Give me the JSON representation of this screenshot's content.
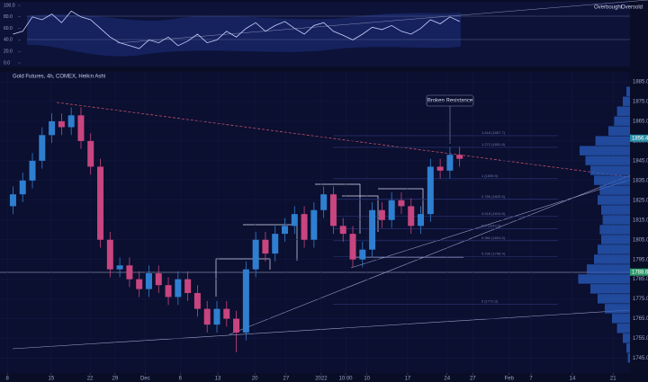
{
  "chart_data": {
    "type": "candlestick",
    "title": "Gold Futures, 4h, COMEX, Heikin Ashi",
    "annotation": "Broken Resistance",
    "x": [
      -1.5,
      0.05,
      1.6,
      3.15,
      4.7,
      6.25,
      7.8,
      9.35,
      10.9,
      12.45,
      14,
      15.55,
      17.1,
      18.65,
      20.2,
      21.75,
      23.3,
      24.85,
      26.4,
      27.95,
      29.5,
      31.05,
      32.6,
      34.15,
      35.7,
      37.25,
      38.8,
      40.35,
      41.9,
      43.45,
      45,
      46.55,
      48.1,
      49.65,
      51.2,
      52.75,
      54.3,
      55.85,
      57.4,
      58.95,
      60.5,
      62.05,
      63.6,
      65.15,
      66.7,
      68.25,
      69.8
    ],
    "open": [
      1822,
      1828,
      1835,
      1845,
      1858,
      1865,
      1862,
      1868,
      1855,
      1842,
      1805,
      1790,
      1792,
      1785,
      1780,
      1788,
      1782,
      1776,
      1785,
      1778,
      1770,
      1762,
      1770,
      1765,
      1758,
      1790,
      1805,
      1798,
      1808,
      1812,
      1818,
      1805,
      1820,
      1828,
      1812,
      1808,
      1795,
      1800,
      1820,
      1815,
      1825,
      1822,
      1812,
      1818,
      1842,
      1840,
      1848
    ],
    "high": [
      1832,
      1839,
      1849,
      1862,
      1869,
      1869,
      1872,
      1872,
      1859,
      1846,
      1809,
      1796,
      1796,
      1789,
      1792,
      1792,
      1786,
      1789,
      1789,
      1782,
      1774,
      1774,
      1774,
      1769,
      1794,
      1809,
      1809,
      1812,
      1816,
      1822,
      1822,
      1824,
      1832,
      1832,
      1816,
      1812,
      1804,
      1824,
      1824,
      1829,
      1829,
      1826,
      1822,
      1846,
      1846,
      1852,
      1852
    ],
    "low": [
      1818,
      1824,
      1831,
      1841,
      1854,
      1858,
      1858,
      1851,
      1838,
      1801,
      1786,
      1786,
      1781,
      1776,
      1776,
      1778,
      1772,
      1772,
      1774,
      1766,
      1758,
      1758,
      1761,
      1748,
      1754,
      1786,
      1794,
      1794,
      1804,
      1808,
      1801,
      1801,
      1816,
      1808,
      1804,
      1791,
      1791,
      1796,
      1811,
      1811,
      1818,
      1808,
      1808,
      1814,
      1836,
      1836,
      1842
    ],
    "close": [
      1828,
      1835,
      1845,
      1858,
      1865,
      1862,
      1868,
      1855,
      1842,
      1805,
      1790,
      1792,
      1785,
      1780,
      1788,
      1782,
      1776,
      1785,
      1778,
      1770,
      1762,
      1770,
      1765,
      1758,
      1790,
      1805,
      1798,
      1808,
      1812,
      1818,
      1805,
      1820,
      1828,
      1812,
      1808,
      1795,
      1800,
      1820,
      1815,
      1825,
      1822,
      1812,
      1818,
      1842,
      1840,
      1848,
      1846
    ],
    "up_color": "#2f7fd0",
    "down_color": "#c8457f",
    "xlim": [
      -3,
      97
    ],
    "xticks": [
      {
        "value": -2.4,
        "label": "8"
      },
      {
        "value": 4.6,
        "label": "15"
      },
      {
        "value": 10.8,
        "label": "22"
      },
      {
        "value": 14.8,
        "label": "29"
      },
      {
        "value": 19.6,
        "label": "Dec"
      },
      {
        "value": 25.2,
        "label": "6"
      },
      {
        "value": 31.2,
        "label": "13"
      },
      {
        "value": 37.1,
        "label": "20"
      },
      {
        "value": 42.1,
        "label": "27"
      },
      {
        "value": 47.7,
        "label": "2022"
      },
      {
        "value": 51.6,
        "label": "10:00"
      },
      {
        "value": 55.0,
        "label": "10"
      },
      {
        "value": 61.5,
        "label": "17"
      },
      {
        "value": 67.8,
        "label": "24"
      },
      {
        "value": 71.9,
        "label": "27"
      },
      {
        "value": 77.7,
        "label": "Feb"
      },
      {
        "value": 81.2,
        "label": "7"
      },
      {
        "value": 87.8,
        "label": "14"
      },
      {
        "value": 94.3,
        "label": "21"
      }
    ],
    "ylim": [
      1737.5,
      1890
    ],
    "yticks": [
      {
        "value": 1745,
        "label": "1745.0"
      },
      {
        "value": 1755,
        "label": "1755.0"
      },
      {
        "value": 1765,
        "label": "1765.0"
      },
      {
        "value": 1775,
        "label": "1775.0"
      },
      {
        "value": 1785,
        "label": "1785.0"
      },
      {
        "value": 1795,
        "label": "1795.0"
      },
      {
        "value": 1805,
        "label": "1805.0"
      },
      {
        "value": 1815,
        "label": "1815.0"
      },
      {
        "value": 1825,
        "label": "1825.0"
      },
      {
        "value": 1835,
        "label": "1835.0"
      },
      {
        "value": 1845,
        "label": "1845.0"
      },
      {
        "value": 1855,
        "label": "1855.0"
      },
      {
        "value": 1865,
        "label": "1865.0"
      },
      {
        "value": 1875,
        "label": "1875.0"
      },
      {
        "value": 1885,
        "label": "1885.0"
      }
    ],
    "levels": [
      {
        "value": 1857.7,
        "label": "1.618 (1857.7)"
      },
      {
        "value": 1851.8,
        "label": "1.272 (1851.8)"
      },
      {
        "value": 1835.9,
        "label": "1 (1835.9)"
      },
      {
        "value": 1825.5,
        "label": "0.786 (1825.5)"
      },
      {
        "value": 1816.8,
        "label": "0.618 (1816.8)"
      },
      {
        "value": 1810.5,
        "label": "0.5 (1810.5)"
      },
      {
        "value": 1804.5,
        "label": "0.382 (1804.5)"
      },
      {
        "value": 1796.4,
        "label": "0.236 (1796.4)"
      },
      {
        "value": 1772.3,
        "label": "0 (1772.3)"
      }
    ],
    "price_marks": [
      1856.4,
      1788.6
    ],
    "volume_profile": {
      "prices": [
        1745,
        1750,
        1755,
        1760,
        1765,
        1770,
        1775,
        1780,
        1785,
        1790,
        1795,
        1800,
        1805,
        1810,
        1815,
        1820,
        1825,
        1830,
        1835,
        1840,
        1845,
        1850,
        1855,
        1860,
        1865,
        1870,
        1875,
        1880
      ],
      "values": [
        3,
        5,
        10,
        18,
        25,
        35,
        45,
        55,
        72,
        60,
        50,
        45,
        40,
        42,
        38,
        40,
        45,
        42,
        50,
        55,
        62,
        70,
        48,
        30,
        22,
        18,
        10,
        5
      ],
      "color": "#2a5fc0"
    },
    "oscillator": {
      "values": [
        50,
        55,
        80,
        75,
        85,
        70,
        90,
        80,
        75,
        60,
        45,
        35,
        30,
        25,
        40,
        35,
        45,
        30,
        38,
        50,
        35,
        40,
        55,
        45,
        60,
        70,
        55,
        65,
        72,
        60,
        50,
        65,
        70,
        55,
        48,
        40,
        50,
        62,
        58,
        65,
        55,
        50,
        60,
        75,
        68,
        80,
        72
      ],
      "ylim": [
        0,
        100
      ],
      "yticks": [
        {
          "value": 0,
          "label": "0.0"
        },
        {
          "value": 20,
          "label": "20.0"
        },
        {
          "value": 40,
          "label": "40.0"
        },
        {
          "value": 60,
          "label": "60.0"
        },
        {
          "value": 80,
          "label": "80.0"
        },
        {
          "value": 100,
          "label": "100.0"
        }
      ],
      "color": "#c9d3ff",
      "legend": [
        "Overbought",
        "Oversold"
      ]
    }
  }
}
